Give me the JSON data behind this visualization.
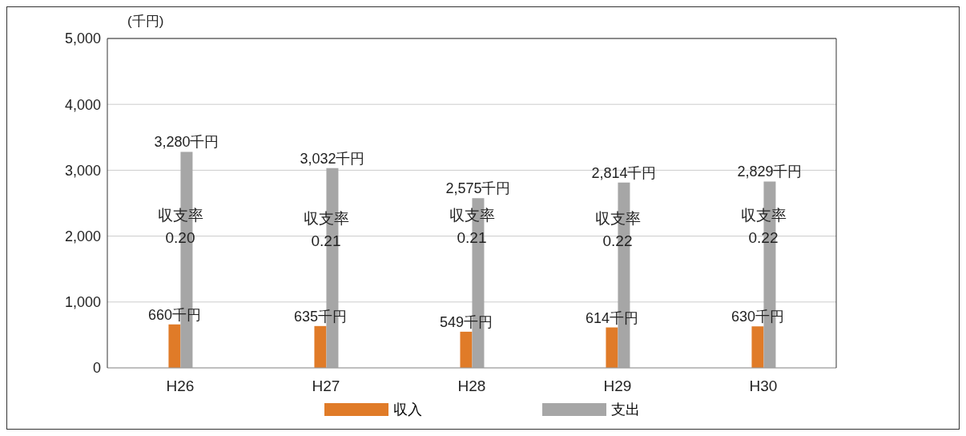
{
  "chart_data": {
    "type": "bar",
    "ylabel": "(千円)",
    "categories": [
      "H26",
      "H27",
      "H28",
      "H29",
      "H30"
    ],
    "series": [
      {
        "name": "収入",
        "color": "#e07b28",
        "values": [
          660,
          635,
          549,
          614,
          630
        ],
        "value_labels": [
          "660千円",
          "635千円",
          "549千円",
          "614千円",
          "630千円"
        ]
      },
      {
        "name": "支出",
        "color": "#a6a6a6",
        "values": [
          3280,
          3032,
          2575,
          2814,
          2829
        ],
        "value_labels": [
          "3,280千円",
          "3,032千円",
          "2,575千円",
          "2,814千円",
          "2,829千円"
        ]
      }
    ],
    "annotations": [
      {
        "text": "収支率\n0.20",
        "x": "H26",
        "y": 2150
      },
      {
        "text": "収支率\n0.21",
        "x": "H27",
        "y": 2100
      },
      {
        "text": "収支率\n0.21",
        "x": "H28",
        "y": 2150
      },
      {
        "text": "収支率\n0.22",
        "x": "H29",
        "y": 2100
      },
      {
        "text": "収支率\n0.22",
        "x": "H30",
        "y": 2150
      }
    ],
    "ylim": [
      0,
      5000
    ],
    "yticks": [
      0,
      {
        "value": 1000,
        "label": "1,000"
      },
      {
        "value": 2000,
        "label": "2,000"
      },
      {
        "value": 3000,
        "label": "3,000"
      },
      {
        "value": 4000,
        "label": "4,000"
      },
      {
        "value": 5000,
        "label": "5,000"
      }
    ],
    "grid": "y",
    "legend": "bottom"
  }
}
